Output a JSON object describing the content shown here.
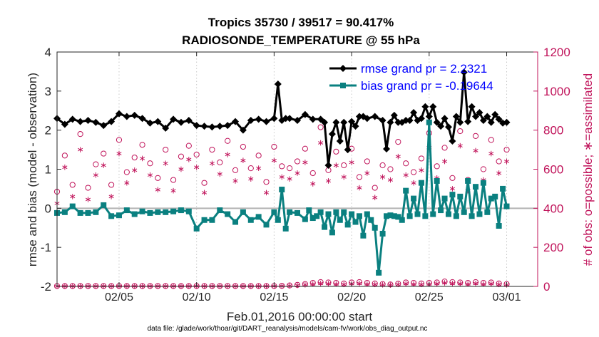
{
  "chart_data": {
    "type": "line",
    "title_line1": "Tropics 35730 / 39517 = 90.417%",
    "title_line2": "RADIOSONDE_TEMPERATURE @ 55 hPa",
    "xlabel": "Feb.01,2016 00:00:00 start",
    "ylabel_left": "rmse and bias (model - observation)",
    "ylabel_right": "# of obs: o=possible; ∗=assimilated",
    "footnote": "data file: /glade/work/thoar/git/DART_reanalysis/models/cam-fv/work/obs_diag_output.nc",
    "x_range": [
      1,
      32
    ],
    "ylim_left": [
      -2,
      4
    ],
    "ylim_right": [
      0,
      1200
    ],
    "x_ticks": [
      {
        "x": 5,
        "label": "02/05"
      },
      {
        "x": 10,
        "label": "02/10"
      },
      {
        "x": 15,
        "label": "02/15"
      },
      {
        "x": 20,
        "label": "02/20"
      },
      {
        "x": 25,
        "label": "02/25"
      },
      {
        "x": 30,
        "label": "03/01"
      }
    ],
    "y_ticks_left": [
      "-2",
      "-1",
      "0",
      "1",
      "2",
      "3",
      "4"
    ],
    "y_ticks_right": [
      "0",
      "200",
      "400",
      "600",
      "800",
      "1000",
      "1200"
    ],
    "colors": {
      "rmse": "#000000",
      "bias": "#0a8080",
      "obs": "#c0135a",
      "zero": "#b3b3b3"
    },
    "legend": [
      {
        "name": "rmse grand pr = 2.2321",
        "color": "#000000",
        "marker": "diamond"
      },
      {
        "name": "bias grand pr = -0.19644",
        "color": "#0a8080",
        "marker": "square"
      }
    ],
    "series": [
      {
        "name": "rmse",
        "x": [
          1.0,
          1.5,
          2.0,
          2.5,
          3.0,
          3.5,
          4.0,
          4.5,
          5.0,
          5.5,
          6.0,
          6.5,
          7.0,
          7.5,
          8.0,
          8.5,
          9.0,
          9.5,
          10.0,
          10.5,
          11.0,
          11.5,
          12.0,
          12.5,
          13.0,
          13.5,
          14.0,
          14.5,
          15.0,
          15.25,
          15.5,
          15.75,
          16.0,
          16.5,
          17.0,
          17.5,
          18.0,
          18.25,
          18.5,
          18.75,
          19.0,
          19.25,
          19.5,
          19.75,
          20.0,
          20.25,
          20.5,
          20.75,
          21.0,
          21.5,
          22.0,
          22.25,
          22.5,
          22.75,
          23.0,
          23.25,
          23.5,
          23.75,
          24.0,
          24.25,
          24.5,
          24.75,
          25.0,
          25.25,
          25.5,
          25.75,
          26.0,
          26.25,
          26.5,
          26.75,
          27.0,
          27.25,
          27.5,
          27.75,
          28.0,
          28.25,
          28.5,
          28.75,
          29.0,
          29.25,
          29.5,
          29.75,
          30.0
        ],
        "values": [
          2.3,
          2.15,
          2.28,
          2.22,
          2.25,
          2.2,
          2.12,
          2.22,
          2.42,
          2.35,
          2.38,
          2.3,
          2.18,
          2.22,
          2.05,
          2.28,
          2.2,
          2.25,
          2.12,
          2.1,
          2.08,
          2.1,
          2.12,
          2.22,
          2.0,
          2.25,
          2.28,
          2.22,
          2.3,
          3.18,
          2.25,
          2.3,
          2.3,
          2.25,
          2.4,
          2.28,
          2.28,
          2.2,
          1.1,
          1.9,
          2.2,
          1.72,
          2.2,
          1.5,
          2.22,
          2.1,
          2.35,
          2.35,
          2.3,
          2.35,
          2.25,
          1.52,
          2.2,
          2.38,
          2.2,
          2.2,
          2.25,
          2.25,
          2.45,
          2.25,
          2.3,
          2.6,
          2.35,
          2.6,
          2.2,
          2.1,
          2.3,
          2.08,
          1.72,
          2.35,
          2.2,
          3.48,
          2.22,
          2.6,
          2.35,
          2.45,
          2.25,
          2.35,
          2.2,
          2.4,
          2.28,
          2.18,
          2.2
        ]
      },
      {
        "name": "bias",
        "x": [
          1.0,
          1.5,
          2.0,
          2.5,
          3.0,
          3.5,
          4.0,
          4.5,
          5.0,
          5.5,
          6.0,
          6.5,
          7.0,
          7.5,
          8.0,
          8.5,
          9.0,
          9.5,
          10.0,
          10.5,
          11.0,
          11.5,
          12.0,
          12.5,
          13.0,
          13.5,
          14.0,
          14.5,
          15.0,
          15.25,
          15.5,
          15.75,
          16.0,
          16.5,
          17.0,
          17.25,
          17.5,
          17.75,
          18.0,
          18.25,
          18.5,
          18.75,
          19.0,
          19.25,
          19.5,
          19.75,
          20.0,
          20.25,
          20.5,
          20.75,
          21.0,
          21.25,
          21.5,
          21.75,
          22.0,
          22.25,
          22.5,
          22.75,
          23.0,
          23.25,
          23.5,
          23.75,
          24.0,
          24.25,
          24.5,
          24.75,
          25.0,
          25.25,
          25.5,
          25.75,
          26.0,
          26.25,
          26.5,
          26.75,
          27.0,
          27.25,
          27.5,
          27.75,
          28.0,
          28.25,
          28.5,
          28.75,
          29.0,
          29.25,
          29.5,
          29.75,
          30.0
        ],
        "values": [
          -0.12,
          -0.1,
          0.05,
          -0.12,
          -0.12,
          -0.1,
          0.08,
          -0.2,
          -0.18,
          -0.05,
          -0.15,
          -0.08,
          -0.12,
          -0.1,
          -0.1,
          -0.08,
          -0.05,
          -0.08,
          -0.52,
          -0.3,
          -0.3,
          -0.05,
          -0.15,
          -0.35,
          -0.1,
          -0.3,
          -0.22,
          -0.42,
          -0.1,
          -0.3,
          0.48,
          -0.52,
          -0.1,
          -0.12,
          -0.28,
          -0.05,
          -0.25,
          -0.2,
          -0.1,
          -0.48,
          -0.15,
          -0.62,
          -0.1,
          -0.3,
          -0.1,
          -0.42,
          -0.15,
          -0.35,
          -0.2,
          -0.7,
          -0.15,
          -0.3,
          -0.5,
          -1.65,
          -0.65,
          -0.2,
          -0.18,
          -0.2,
          -0.22,
          -0.3,
          0.45,
          -0.2,
          0.25,
          -0.15,
          0.65,
          -0.2,
          2.2,
          -0.15,
          0.7,
          -0.05,
          0.25,
          -0.15,
          0.35,
          -0.2,
          0.3,
          -0.1,
          0.7,
          -0.2,
          0.55,
          -0.15,
          0.65,
          -0.1,
          0.25,
          0.3,
          -0.45,
          0.5,
          0.05
        ]
      },
      {
        "name": "obs_possible",
        "x": [
          1.0,
          1.5,
          2.0,
          2.5,
          3.0,
          3.5,
          4.0,
          4.5,
          5.0,
          5.5,
          6.0,
          6.5,
          7.0,
          7.5,
          8.0,
          8.5,
          9.0,
          9.5,
          10.0,
          10.5,
          11.0,
          11.5,
          12.0,
          12.5,
          13.0,
          13.5,
          14.0,
          14.5,
          15.0,
          15.5,
          16.0,
          16.5,
          17.0,
          17.5,
          18.0,
          18.5,
          19.0,
          19.5,
          20.0,
          20.5,
          21.0,
          21.5,
          22.0,
          22.5,
          23.0,
          23.5,
          24.0,
          24.5,
          25.0,
          25.5,
          26.0,
          26.5,
          27.0,
          27.5,
          28.0,
          28.5,
          29.0,
          29.5,
          30.0
        ],
        "values": [
          485,
          670,
          520,
          780,
          505,
          625,
          680,
          520,
          750,
          585,
          660,
          725,
          630,
          555,
          700,
          545,
          665,
          720,
          675,
          530,
          700,
          635,
          745,
          595,
          715,
          605,
          670,
          535,
          715,
          615,
          605,
          640,
          705,
          580,
          815,
          595,
          690,
          620,
          705,
          560,
          640,
          505,
          620,
          600,
          740,
          630,
          585,
          655,
          785,
          615,
          710,
          555,
          795,
          545,
          770,
          600,
          750,
          640,
          700
        ]
      },
      {
        "name": "obs_assimilated",
        "x": [
          1.0,
          1.5,
          2.0,
          2.5,
          3.0,
          3.5,
          4.0,
          4.5,
          5.0,
          5.5,
          6.0,
          6.5,
          7.0,
          7.5,
          8.0,
          8.5,
          9.0,
          9.5,
          10.0,
          10.5,
          11.0,
          11.5,
          12.0,
          12.5,
          13.0,
          13.5,
          14.0,
          14.5,
          15.0,
          15.5,
          16.0,
          16.5,
          17.0,
          17.5,
          18.0,
          18.5,
          19.0,
          19.5,
          20.0,
          20.5,
          21.0,
          21.5,
          22.0,
          22.5,
          23.0,
          23.5,
          24.0,
          24.5,
          25.0,
          25.5,
          26.0,
          26.5,
          27.0,
          27.5,
          28.0,
          28.5,
          29.0,
          29.5,
          30.0
        ],
        "values": [
          425,
          610,
          460,
          700,
          445,
          570,
          620,
          460,
          680,
          530,
          595,
          655,
          570,
          495,
          630,
          490,
          600,
          650,
          610,
          480,
          630,
          575,
          675,
          540,
          645,
          550,
          605,
          480,
          645,
          560,
          550,
          580,
          635,
          525,
          735,
          540,
          620,
          560,
          635,
          505,
          580,
          455,
          560,
          545,
          665,
          570,
          530,
          595,
          710,
          555,
          640,
          500,
          720,
          490,
          695,
          545,
          680,
          580,
          640
        ]
      },
      {
        "name": "obs_bottom_possible",
        "x": [
          1.0,
          1.5,
          2.0,
          2.5,
          3.0,
          3.5,
          4.0,
          4.5,
          5.0,
          5.5,
          6.0,
          6.5,
          7.0,
          7.5,
          8.0,
          8.5,
          9.0,
          9.5,
          10.0,
          10.5,
          11.0,
          11.5,
          12.0,
          12.5,
          13.0,
          13.5,
          14.0,
          14.5,
          15.0,
          15.5,
          16.0,
          16.5,
          17.0,
          17.5,
          18.0,
          18.5,
          19.0,
          19.5,
          20.0,
          20.5,
          21.0,
          21.5,
          22.0,
          22.5,
          23.0,
          23.5,
          24.0,
          24.5,
          25.0,
          25.5,
          26.0,
          26.5,
          27.0,
          27.5,
          28.0,
          28.5,
          29.0,
          29.5,
          30.0
        ],
        "values": [
          2,
          2,
          2,
          2,
          2,
          2,
          2,
          2,
          2,
          2,
          2,
          2,
          2,
          2,
          2,
          2,
          2,
          2,
          2,
          2,
          2,
          2,
          2,
          2,
          2,
          2,
          2,
          2,
          2,
          3,
          5,
          8,
          12,
          18,
          22,
          20,
          18,
          15,
          20,
          22,
          18,
          15,
          12,
          10,
          14,
          20,
          18,
          15,
          18,
          20,
          25,
          22,
          20,
          18,
          22,
          18,
          20,
          15,
          12
        ]
      },
      {
        "name": "obs_bottom_assimilated",
        "x": [
          1.0,
          1.5,
          2.0,
          2.5,
          3.0,
          3.5,
          4.0,
          4.5,
          5.0,
          5.5,
          6.0,
          6.5,
          7.0,
          7.5,
          8.0,
          8.5,
          9.0,
          9.5,
          10.0,
          10.5,
          11.0,
          11.5,
          12.0,
          12.5,
          13.0,
          13.5,
          14.0,
          14.5,
          15.0,
          15.5,
          16.0,
          16.5,
          17.0,
          17.5,
          18.0,
          18.5,
          19.0,
          19.5,
          20.0,
          20.5,
          21.0,
          21.5,
          22.0,
          22.5,
          23.0,
          23.5,
          24.0,
          24.5,
          25.0,
          25.5,
          26.0,
          26.5,
          27.0,
          27.5,
          28.0,
          28.5,
          29.0,
          29.5,
          30.0
        ],
        "values": [
          1,
          1,
          1,
          1,
          1,
          1,
          1,
          1,
          1,
          1,
          1,
          1,
          1,
          1,
          1,
          1,
          1,
          1,
          1,
          1,
          1,
          1,
          1,
          1,
          1,
          1,
          1,
          1,
          1,
          2,
          3,
          5,
          8,
          12,
          15,
          14,
          12,
          10,
          14,
          15,
          12,
          10,
          8,
          7,
          10,
          14,
          12,
          10,
          12,
          14,
          18,
          15,
          14,
          12,
          15,
          12,
          14,
          10,
          8
        ]
      }
    ]
  }
}
